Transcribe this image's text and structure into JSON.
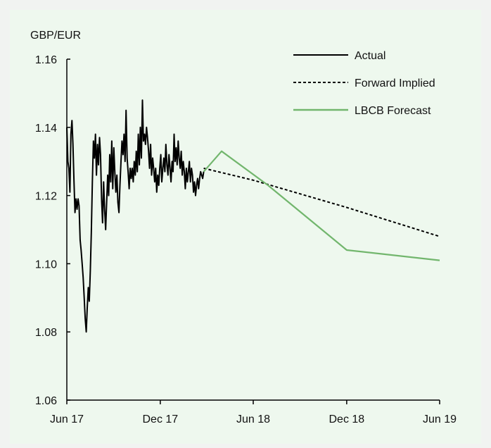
{
  "chart_data": {
    "type": "line",
    "ylabel": "GBP/EUR",
    "ylim": [
      1.06,
      1.16
    ],
    "yticks": [
      "1.06",
      "1.08",
      "1.10",
      "1.12",
      "1.14",
      "1.16"
    ],
    "xlim": [
      "2017-06",
      "2019-06"
    ],
    "xticks": [
      {
        "label": "Jun 17",
        "date": "2017-06"
      },
      {
        "label": "Dec 17",
        "date": "2017-12"
      },
      {
        "label": "Jun 18",
        "date": "2018-06"
      },
      {
        "label": "Dec 18",
        "date": "2018-12"
      },
      {
        "label": "Jun 19",
        "date": "2019-06"
      }
    ],
    "legend_position": "top-right",
    "grid": false,
    "series": [
      {
        "name": "Actual",
        "color": "#000000",
        "style": "solid",
        "x": [
          "2017-06-01",
          "2017-06-03",
          "2017-06-05",
          "2017-06-07",
          "2017-06-09",
          "2017-06-11",
          "2017-06-13",
          "2017-06-15",
          "2017-06-17",
          "2017-06-19",
          "2017-06-21",
          "2017-06-23",
          "2017-06-25",
          "2017-06-27",
          "2017-06-29",
          "2017-07-01",
          "2017-07-03",
          "2017-07-05",
          "2017-07-07",
          "2017-07-09",
          "2017-07-11",
          "2017-07-13",
          "2017-07-15",
          "2017-07-17",
          "2017-07-19",
          "2017-07-21",
          "2017-07-23",
          "2017-07-25",
          "2017-07-27",
          "2017-07-29",
          "2017-07-31",
          "2017-08-02",
          "2017-08-04",
          "2017-08-06",
          "2017-08-08",
          "2017-08-10",
          "2017-08-12",
          "2017-08-14",
          "2017-08-16",
          "2017-08-18",
          "2017-08-20",
          "2017-08-22",
          "2017-08-24",
          "2017-08-26",
          "2017-08-28",
          "2017-08-30",
          "2017-09-01",
          "2017-09-03",
          "2017-09-05",
          "2017-09-07",
          "2017-09-09",
          "2017-09-11",
          "2017-09-13",
          "2017-09-15",
          "2017-09-17",
          "2017-09-19",
          "2017-09-21",
          "2017-09-23",
          "2017-09-25",
          "2017-09-27",
          "2017-09-29",
          "2017-10-01",
          "2017-10-03",
          "2017-10-05",
          "2017-10-07",
          "2017-10-09",
          "2017-10-11",
          "2017-10-13",
          "2017-10-15",
          "2017-10-17",
          "2017-10-19",
          "2017-10-21",
          "2017-10-23",
          "2017-10-25",
          "2017-10-27",
          "2017-10-29",
          "2017-10-31",
          "2017-11-02",
          "2017-11-04",
          "2017-11-06",
          "2017-11-08",
          "2017-11-10",
          "2017-11-12",
          "2017-11-14",
          "2017-11-16",
          "2017-11-18",
          "2017-11-20",
          "2017-11-22",
          "2017-11-24",
          "2017-11-26",
          "2017-11-28",
          "2017-11-30",
          "2017-12-02",
          "2017-12-04",
          "2017-12-06",
          "2017-12-08",
          "2017-12-10",
          "2017-12-12",
          "2017-12-14",
          "2017-12-16",
          "2017-12-18",
          "2017-12-20",
          "2017-12-22",
          "2017-12-24",
          "2017-12-26",
          "2017-12-28",
          "2017-12-30",
          "2018-01-01",
          "2018-01-03",
          "2018-01-05",
          "2018-01-07",
          "2018-01-09",
          "2018-01-11",
          "2018-01-13",
          "2018-01-15",
          "2018-01-17",
          "2018-01-19",
          "2018-01-21",
          "2018-01-23",
          "2018-01-25",
          "2018-01-27",
          "2018-01-29",
          "2018-01-31",
          "2018-02-02",
          "2018-02-04",
          "2018-02-06",
          "2018-02-08",
          "2018-02-10",
          "2018-02-12",
          "2018-02-14",
          "2018-02-16",
          "2018-02-18",
          "2018-02-20",
          "2018-02-22",
          "2018-02-24"
        ],
        "y": [
          1.14,
          1.13,
          1.128,
          1.121,
          1.138,
          1.142,
          1.135,
          1.124,
          1.115,
          1.119,
          1.116,
          1.119,
          1.117,
          1.107,
          1.104,
          1.1,
          1.096,
          1.09,
          1.084,
          1.08,
          1.087,
          1.093,
          1.089,
          1.098,
          1.109,
          1.124,
          1.136,
          1.131,
          1.138,
          1.126,
          1.135,
          1.129,
          1.137,
          1.132,
          1.119,
          1.112,
          1.124,
          1.116,
          1.11,
          1.118,
          1.126,
          1.12,
          1.132,
          1.124,
          1.136,
          1.122,
          1.134,
          1.127,
          1.121,
          1.126,
          1.118,
          1.115,
          1.123,
          1.13,
          1.136,
          1.132,
          1.138,
          1.13,
          1.145,
          1.131,
          1.127,
          1.122,
          1.128,
          1.125,
          1.128,
          1.124,
          1.13,
          1.126,
          1.133,
          1.127,
          1.138,
          1.129,
          1.14,
          1.131,
          1.148,
          1.136,
          1.138,
          1.135,
          1.14,
          1.137,
          1.133,
          1.128,
          1.135,
          1.126,
          1.131,
          1.128,
          1.124,
          1.128,
          1.121,
          1.126,
          1.123,
          1.128,
          1.132,
          1.124,
          1.128,
          1.131,
          1.127,
          1.135,
          1.129,
          1.126,
          1.132,
          1.128,
          1.124,
          1.13,
          1.127,
          1.138,
          1.13,
          1.134,
          1.129,
          1.136,
          1.131,
          1.128,
          1.133,
          1.126,
          1.13,
          1.127,
          1.122,
          1.128,
          1.124,
          1.127,
          1.13,
          1.124,
          1.128,
          1.126,
          1.121,
          1.124,
          1.12,
          1.123,
          1.125,
          1.122,
          1.125,
          1.127,
          1.126,
          1.125,
          1.127
        ]
      },
      {
        "name": "Forward Implied",
        "color": "#000000",
        "style": "dashed",
        "x": [
          "2018-02-24",
          "2018-06-01",
          "2018-12-01",
          "2019-06-01"
        ],
        "y": [
          1.128,
          1.1245,
          1.1165,
          1.108
        ]
      },
      {
        "name": "LBCB Forecast",
        "color": "#72b66d",
        "style": "solid",
        "x": [
          "2018-02-24",
          "2018-03-31",
          "2018-06-30",
          "2018-12-01",
          "2019-06-01"
        ],
        "y": [
          1.127,
          1.133,
          1.123,
          1.104,
          1.101
        ]
      }
    ]
  }
}
